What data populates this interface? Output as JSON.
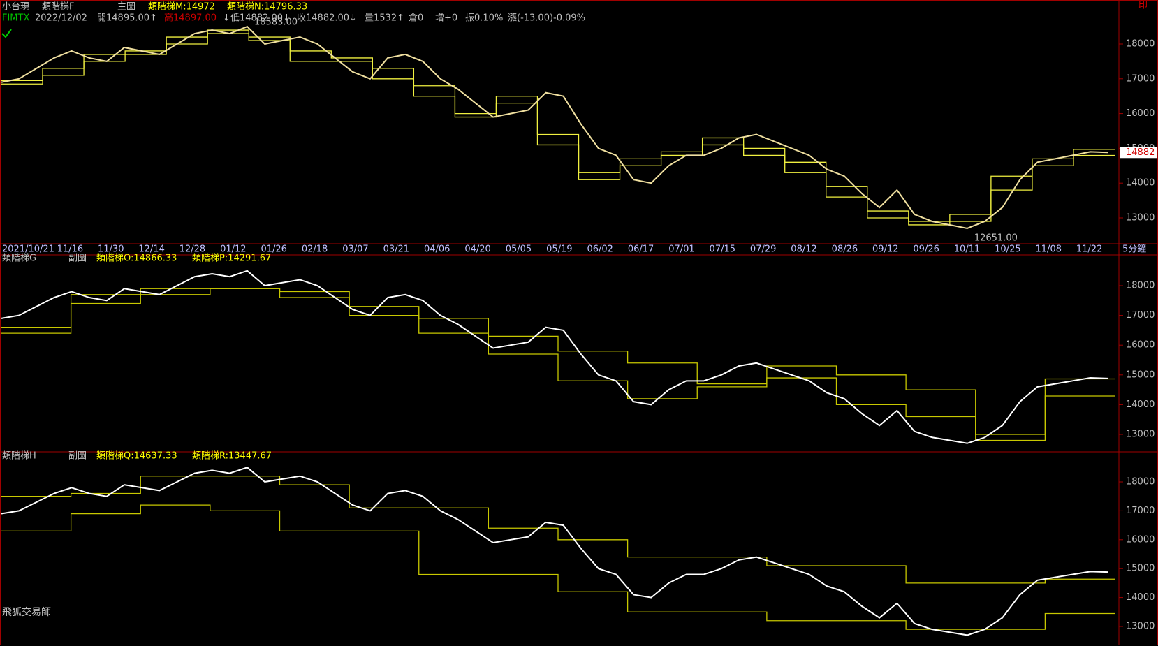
{
  "header": {
    "product": "小台現",
    "chart_name": "類階梯F",
    "main_label": "主圖",
    "ind_m": "類階梯M:14972",
    "ind_n": "類階梯N:14796.33",
    "print_icon": "印",
    "symbol": "FIMTX",
    "date": "2022/12/02",
    "open": "開14895.00↑",
    "high": "高14897.00",
    "high_arrow": "↓",
    "low": "低14882.00↓",
    "close": "收14882.00↓",
    "volume": "量1532↑",
    "oi": "倉0",
    "oi_change": "增+0",
    "amplitude": "振0.10%",
    "change": "漲(-13.00)-0.09%"
  },
  "annotations": {
    "high_mark": "18583.00",
    "low_mark": "12651.00",
    "last_price": "14882"
  },
  "time_axis": {
    "dates": [
      "2021/10/21",
      "11/16",
      "11/30",
      "12/14",
      "12/28",
      "01/12",
      "01/26",
      "02/18",
      "03/07",
      "03/21",
      "04/06",
      "04/20",
      "05/05",
      "05/19",
      "06/02",
      "06/17",
      "07/01",
      "07/15",
      "07/29",
      "08/12",
      "08/26",
      "09/12",
      "09/26",
      "10/11",
      "10/25",
      "11/08",
      "11/22"
    ],
    "period": "5分鐘"
  },
  "yticks": [
    13000,
    14000,
    15000,
    16000,
    17000,
    18000
  ],
  "price": [
    16900,
    17000,
    17300,
    17600,
    17800,
    17600,
    17500,
    17900,
    17800,
    17700,
    18000,
    18300,
    18400,
    18300,
    18500,
    18000,
    18100,
    18200,
    18000,
    17600,
    17200,
    17000,
    17600,
    17700,
    17500,
    17000,
    16700,
    16300,
    15900,
    16000,
    16100,
    16600,
    16500,
    15700,
    15000,
    14800,
    14100,
    14000,
    14500,
    14800,
    14800,
    15000,
    15300,
    15400,
    15200,
    15000,
    14800,
    14400,
    14200,
    13700,
    13300,
    13800,
    13100,
    12900,
    12800,
    12700,
    12900,
    13300,
    14100,
    14600,
    14700,
    14800,
    14900,
    14882
  ],
  "panels": [
    {
      "steps": [
        {
          "name": "類階梯M",
          "values": [
            16950,
            17300,
            17700,
            17800,
            18200,
            18400,
            18200,
            17800,
            17600,
            17300,
            16800,
            16000,
            16500,
            15400,
            14300,
            14700,
            14900,
            15300,
            15000,
            14600,
            13900,
            13200,
            12900,
            13100,
            14200,
            14700,
            14972
          ]
        },
        {
          "name": "類階梯N",
          "values": [
            16850,
            17100,
            17500,
            17700,
            18000,
            18300,
            18100,
            17500,
            17500,
            17000,
            16500,
            15900,
            16300,
            15100,
            14100,
            14500,
            14800,
            15100,
            14800,
            14300,
            13600,
            13000,
            12800,
            12900,
            13800,
            14500,
            14796.33
          ]
        }
      ]
    },
    {
      "name": "類階梯G",
      "sub": "副圖",
      "ind_a": "類階梯O:14866.33",
      "ind_b": "類階梯P:14291.67",
      "steps": [
        {
          "name": "類階梯O",
          "values": [
            16600,
            17700,
            17900,
            17900,
            17600,
            17300,
            16900,
            16300,
            15800,
            15400,
            14700,
            15300,
            15000,
            14500,
            13000,
            14866.33
          ]
        },
        {
          "name": "類階梯P",
          "values": [
            16400,
            17400,
            17700,
            17900,
            17800,
            17000,
            16400,
            15700,
            14800,
            14200,
            14600,
            14900,
            14000,
            13600,
            12800,
            14291.67
          ]
        }
      ]
    },
    {
      "name": "類階梯H",
      "sub": "副圖",
      "ind_a": "類階梯Q:14637.33",
      "ind_b": "類階梯R:13447.67",
      "steps": [
        {
          "name": "類階梯Q",
          "values": [
            17500,
            17600,
            18200,
            18200,
            17900,
            17100,
            17100,
            16400,
            16000,
            15400,
            15400,
            15100,
            15100,
            14500,
            14500,
            14637.33
          ]
        },
        {
          "name": "類階梯R",
          "values": [
            16300,
            16900,
            17200,
            17000,
            16300,
            16300,
            14800,
            14800,
            14200,
            13500,
            13500,
            13200,
            13200,
            12900,
            12900,
            13447.67
          ]
        }
      ]
    }
  ],
  "footer": "飛狐交易師"
}
